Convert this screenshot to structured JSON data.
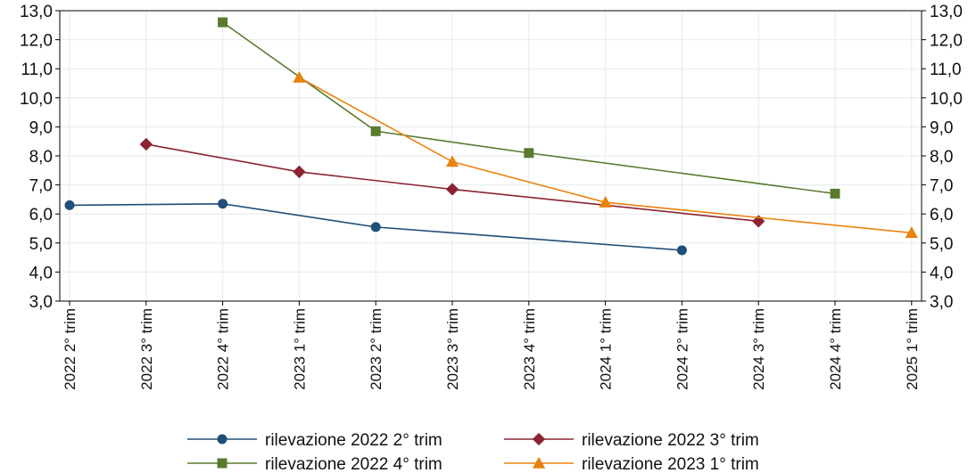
{
  "chart_data": {
    "type": "line",
    "categories": [
      "2022 2° trim",
      "2022 3° trim",
      "2022 4° trim",
      "2023 1° trim",
      "2023 2° trim",
      "2023 3° trim",
      "2023 4° trim",
      "2024 1° trim",
      "2024 2° trim",
      "2024 3° trim",
      "2024 4° trim",
      "2025 1° trim"
    ],
    "y_ticks": [
      "3,0",
      "4,0",
      "5,0",
      "6,0",
      "7,0",
      "8,0",
      "9,0",
      "10,0",
      "11,0",
      "12,0",
      "13,0"
    ],
    "ylim": [
      3,
      13
    ],
    "grid": true,
    "legend_position": "bottom",
    "series": [
      {
        "name": "rilevazione 2022 2° trim",
        "color": "#1f4e79",
        "marker": "circle",
        "values": [
          6.3,
          null,
          6.35,
          null,
          5.55,
          null,
          null,
          null,
          4.75,
          null,
          null,
          null
        ]
      },
      {
        "name": "rilevazione 2022 3° trim",
        "color": "#8b2332",
        "marker": "diamond",
        "values": [
          null,
          8.4,
          null,
          7.45,
          null,
          6.85,
          null,
          null,
          null,
          5.75,
          null,
          null
        ]
      },
      {
        "name": "rilevazione 2022 4° trim",
        "color": "#5a7a2e",
        "marker": "square",
        "values": [
          null,
          null,
          12.6,
          null,
          8.85,
          null,
          8.1,
          null,
          null,
          null,
          6.7,
          null
        ]
      },
      {
        "name": "rilevazione 2023 1° trim",
        "color": "#e8820c",
        "marker": "triangle",
        "values": [
          null,
          null,
          null,
          10.7,
          null,
          7.8,
          null,
          6.4,
          null,
          null,
          null,
          5.35
        ]
      }
    ]
  }
}
